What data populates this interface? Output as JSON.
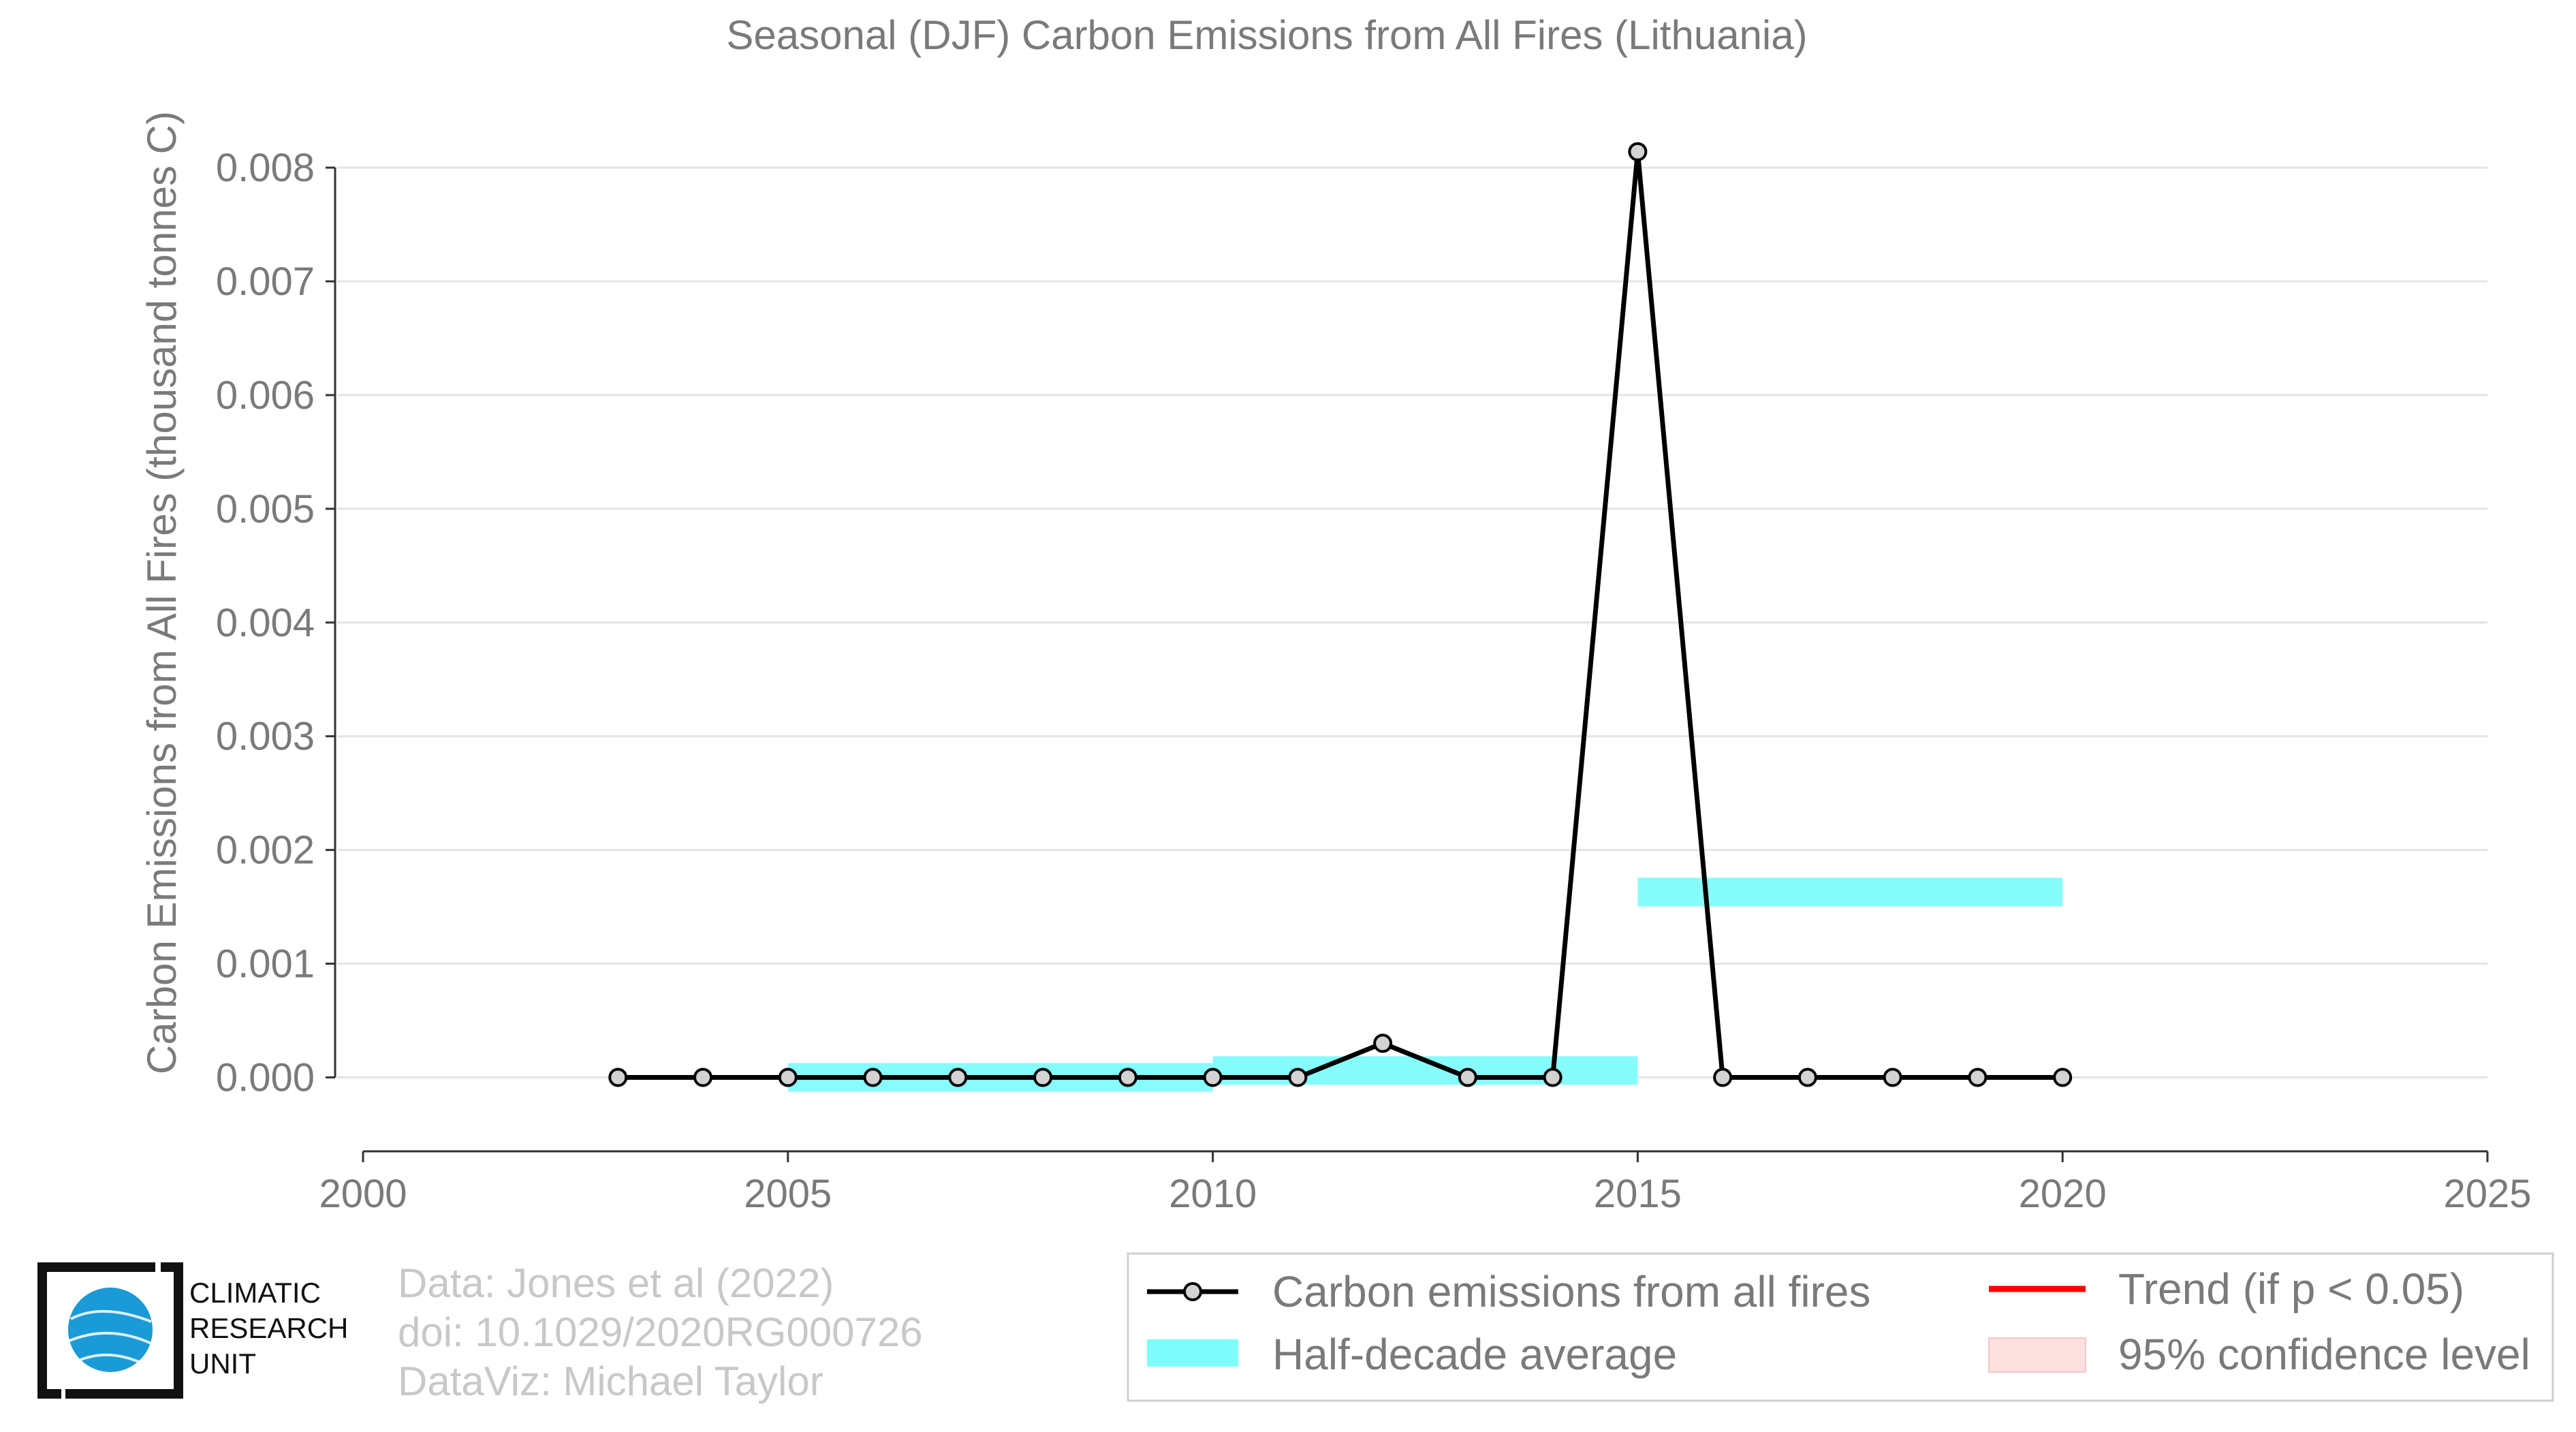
{
  "chart_data": {
    "type": "line",
    "title": "Seasonal (DJF) Carbon Emissions from All Fires (Lithuania)",
    "xlabel": "",
    "ylabel": "Carbon Emissions from All Fires (thousand tonnes C)",
    "xlim": [
      2000,
      2025
    ],
    "ylim": [
      -0.00065,
      0.0083
    ],
    "x_ticks": [
      2000,
      2005,
      2010,
      2015,
      2020,
      2025
    ],
    "y_ticks": [
      0.0,
      0.001,
      0.002,
      0.003,
      0.004,
      0.005,
      0.006,
      0.007,
      0.008
    ],
    "y_tick_labels": [
      "0.000",
      "0.001",
      "0.002",
      "0.003",
      "0.004",
      "0.005",
      "0.006",
      "0.007",
      "0.008"
    ],
    "grid": true,
    "series": [
      {
        "name": "Carbon emissions from all fires",
        "color": "#000000",
        "x": [
          2003,
          2004,
          2005,
          2006,
          2007,
          2008,
          2009,
          2010,
          2011,
          2012,
          2013,
          2014,
          2015,
          2016,
          2017,
          2018,
          2019,
          2020
        ],
        "y": [
          0.0,
          0.0,
          0.0,
          0.0,
          0.0,
          0.0,
          0.0,
          0.0,
          0.0,
          0.0003,
          0.0,
          0.0,
          0.00814,
          0.0,
          0.0,
          0.0,
          0.0,
          0.0
        ]
      }
    ],
    "half_decade_averages": {
      "name": "Half-decade average",
      "color": "#7ffcfc",
      "segments": [
        {
          "x_start": 2005,
          "x_end": 2010,
          "value": 0.0
        },
        {
          "x_start": 2010,
          "x_end": 2015,
          "value": 6e-05
        },
        {
          "x_start": 2015,
          "x_end": 2020,
          "value": 0.00163
        }
      ]
    },
    "legend": {
      "placement": "bottom-right",
      "entries": [
        {
          "label": "Carbon emissions from all fires",
          "kind": "line-marker",
          "color": "#000000"
        },
        {
          "label": "Trend (if p < 0.05)",
          "kind": "line",
          "color": "#ff0000"
        },
        {
          "label": "Half-decade average",
          "kind": "band",
          "color": "#7ffcfc"
        },
        {
          "label": "95% confidence level",
          "kind": "band",
          "color": "#fde0e0"
        }
      ]
    }
  },
  "credits": {
    "line1": "Data: Jones et al (2022)",
    "line2": "doi: 10.1029/2020RG000726",
    "line3": "DataViz: Michael Taylor"
  },
  "logo": {
    "line1": "CLIMATIC",
    "line2": "RESEARCH",
    "line3": "UNIT",
    "globe_color": "#1a9ad6"
  }
}
